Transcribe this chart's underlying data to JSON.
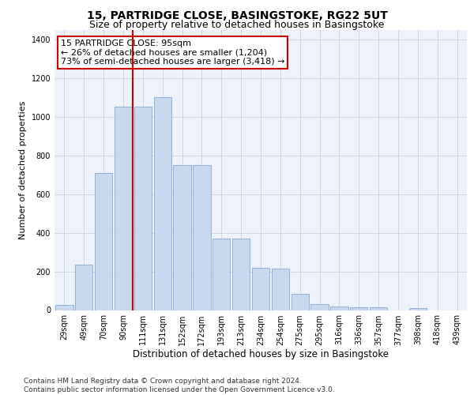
{
  "title": "15, PARTRIDGE CLOSE, BASINGSTOKE, RG22 5UT",
  "subtitle": "Size of property relative to detached houses in Basingstoke",
  "xlabel": "Distribution of detached houses by size in Basingstoke",
  "ylabel": "Number of detached properties",
  "categories": [
    "29sqm",
    "49sqm",
    "70sqm",
    "90sqm",
    "111sqm",
    "131sqm",
    "152sqm",
    "172sqm",
    "193sqm",
    "213sqm",
    "234sqm",
    "254sqm",
    "275sqm",
    "295sqm",
    "316sqm",
    "336sqm",
    "357sqm",
    "377sqm",
    "398sqm",
    "418sqm",
    "439sqm"
  ],
  "values": [
    25,
    235,
    710,
    1050,
    1050,
    1100,
    750,
    750,
    370,
    370,
    220,
    215,
    85,
    30,
    20,
    15,
    15,
    0,
    10,
    0,
    0
  ],
  "bar_color": "#c8d9ef",
  "bar_edge_color": "#7fa8d4",
  "vline_color": "#cc0000",
  "vline_pos": 3.5,
  "annotation_text": "15 PARTRIDGE CLOSE: 95sqm\n← 26% of detached houses are smaller (1,204)\n73% of semi-detached houses are larger (3,418) →",
  "annotation_box_color": "#ffffff",
  "annotation_box_edge": "#cc0000",
  "ylim": [
    0,
    1450
  ],
  "yticks": [
    0,
    200,
    400,
    600,
    800,
    1000,
    1200,
    1400
  ],
  "background_color": "#eef2fa",
  "footer_text": "Contains HM Land Registry data © Crown copyright and database right 2024.\nContains public sector information licensed under the Open Government Licence v3.0.",
  "title_fontsize": 10,
  "subtitle_fontsize": 9,
  "xlabel_fontsize": 8.5,
  "ylabel_fontsize": 8,
  "tick_fontsize": 7,
  "annotation_fontsize": 8,
  "footer_fontsize": 6.5
}
